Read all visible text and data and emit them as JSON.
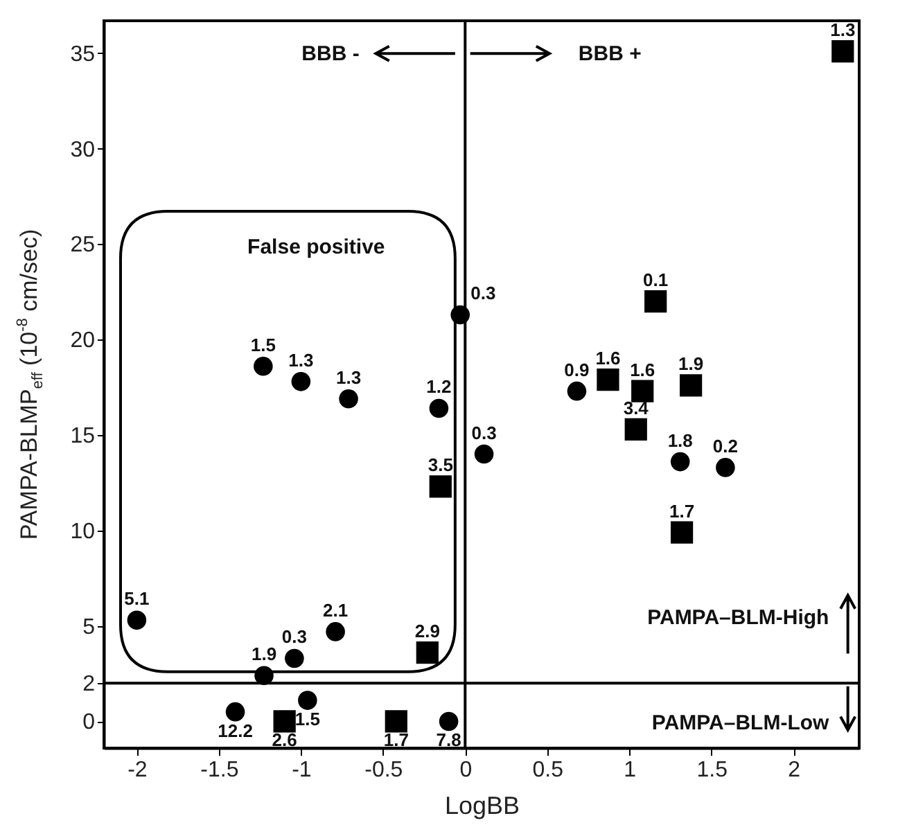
{
  "chart_data": {
    "type": "scatter",
    "xlabel": "LogBB",
    "ylabel": "PAMPA-BLMP$_{eff}$ (10$^{-8}$ cm/sec)",
    "xlim": [
      -2.2,
      2.4
    ],
    "xticks": [
      -2,
      -1.5,
      -1,
      -0.5,
      0,
      0.5,
      1,
      1.5,
      2
    ],
    "ylim": [
      -1.4,
      36.7
    ],
    "yticks": [
      0,
      2,
      5,
      10,
      15,
      20,
      25,
      30,
      35
    ],
    "grid": false,
    "series": [
      {
        "marker": "circle",
        "color": "#000000",
        "x": [
          -2.0,
          -1.225,
          -1.04,
          -0.79,
          -1.4,
          -0.96,
          -0.1,
          -1.23,
          -1.0,
          -0.71,
          -0.16,
          -0.03,
          0.115,
          0.68,
          1.31,
          1.585
        ],
        "values": [
          5.3,
          2.4,
          3.3,
          4.7,
          0.5,
          1.1,
          0,
          18.6,
          17.8,
          16.9,
          16.4,
          21.3,
          14.0,
          17.3,
          13.6,
          13.3
        ]
      },
      {
        "marker": "square",
        "color": "#000000",
        "x": [
          -0.23,
          -1.1,
          -0.42,
          -0.15,
          0.87,
          1.08,
          1.375,
          1.04,
          1.32,
          1.16,
          2.3
        ],
        "values": [
          3.6,
          0,
          0,
          12.3,
          17.9,
          17.3,
          17.6,
          15.3,
          9.9,
          22.0,
          35.1
        ]
      }
    ],
    "ref_lines": [
      {
        "axis": "x",
        "value": 0,
        "color": "#000000",
        "line_style": "solid"
      },
      {
        "axis": "y",
        "value": 2,
        "color": "#000000",
        "line_style": "solid"
      }
    ],
    "annotations": [
      "BBB -",
      "BBB +",
      "False positive",
      "PAMPA–BLM-High",
      "PAMPA–BLM-Low",
      {
        "text": "5.1",
        "x": -2.0,
        "y": 5.3
      },
      {
        "text": "1.9",
        "x": -1.225,
        "y": 2.4
      },
      {
        "text": "0.3",
        "x": -1.04,
        "y": 3.3
      },
      {
        "text": "2.1",
        "x": -0.79,
        "y": 4.7
      },
      {
        "text": "12.2",
        "x": -1.4,
        "y": 0.5
      },
      {
        "text": "1.5",
        "x": -0.96,
        "y": 1.1
      },
      {
        "text": "7.8",
        "x": -0.1,
        "y": 0
      },
      {
        "text": "1.5",
        "x": -1.23,
        "y": 18.6
      },
      {
        "text": "1.3",
        "x": -1.0,
        "y": 17.8
      },
      {
        "text": "1.3",
        "x": -0.71,
        "y": 16.9
      },
      {
        "text": "1.2",
        "x": -0.16,
        "y": 16.4
      },
      {
        "text": "0.3",
        "x": -0.03,
        "y": 21.3
      },
      {
        "text": "0.3",
        "x": 0.115,
        "y": 14.0
      },
      {
        "text": "0.9",
        "x": 0.68,
        "y": 17.3
      },
      {
        "text": "1.8",
        "x": 1.31,
        "y": 13.6
      },
      {
        "text": "0.2",
        "x": 1.585,
        "y": 13.3
      },
      {
        "text": "2.9",
        "x": -0.23,
        "y": 3.6
      },
      {
        "text": "2.6",
        "x": -1.1,
        "y": 0
      },
      {
        "text": "1.7",
        "x": -0.42,
        "y": 0
      },
      {
        "text": "3.5",
        "x": -0.15,
        "y": 12.3
      },
      {
        "text": "1.6",
        "x": 0.87,
        "y": 17.9
      },
      {
        "text": "1.6",
        "x": 1.08,
        "y": 17.3
      },
      {
        "text": "1.9",
        "x": 1.375,
        "y": 17.6
      },
      {
        "text": "3.4",
        "x": 1.04,
        "y": 15.3
      },
      {
        "text": "1.7",
        "x": 1.32,
        "y": 9.9
      },
      {
        "text": "0.1",
        "x": 1.16,
        "y": 22.0
      },
      {
        "text": "1.3",
        "x": 2.3,
        "y": 35.1
      }
    ]
  }
}
